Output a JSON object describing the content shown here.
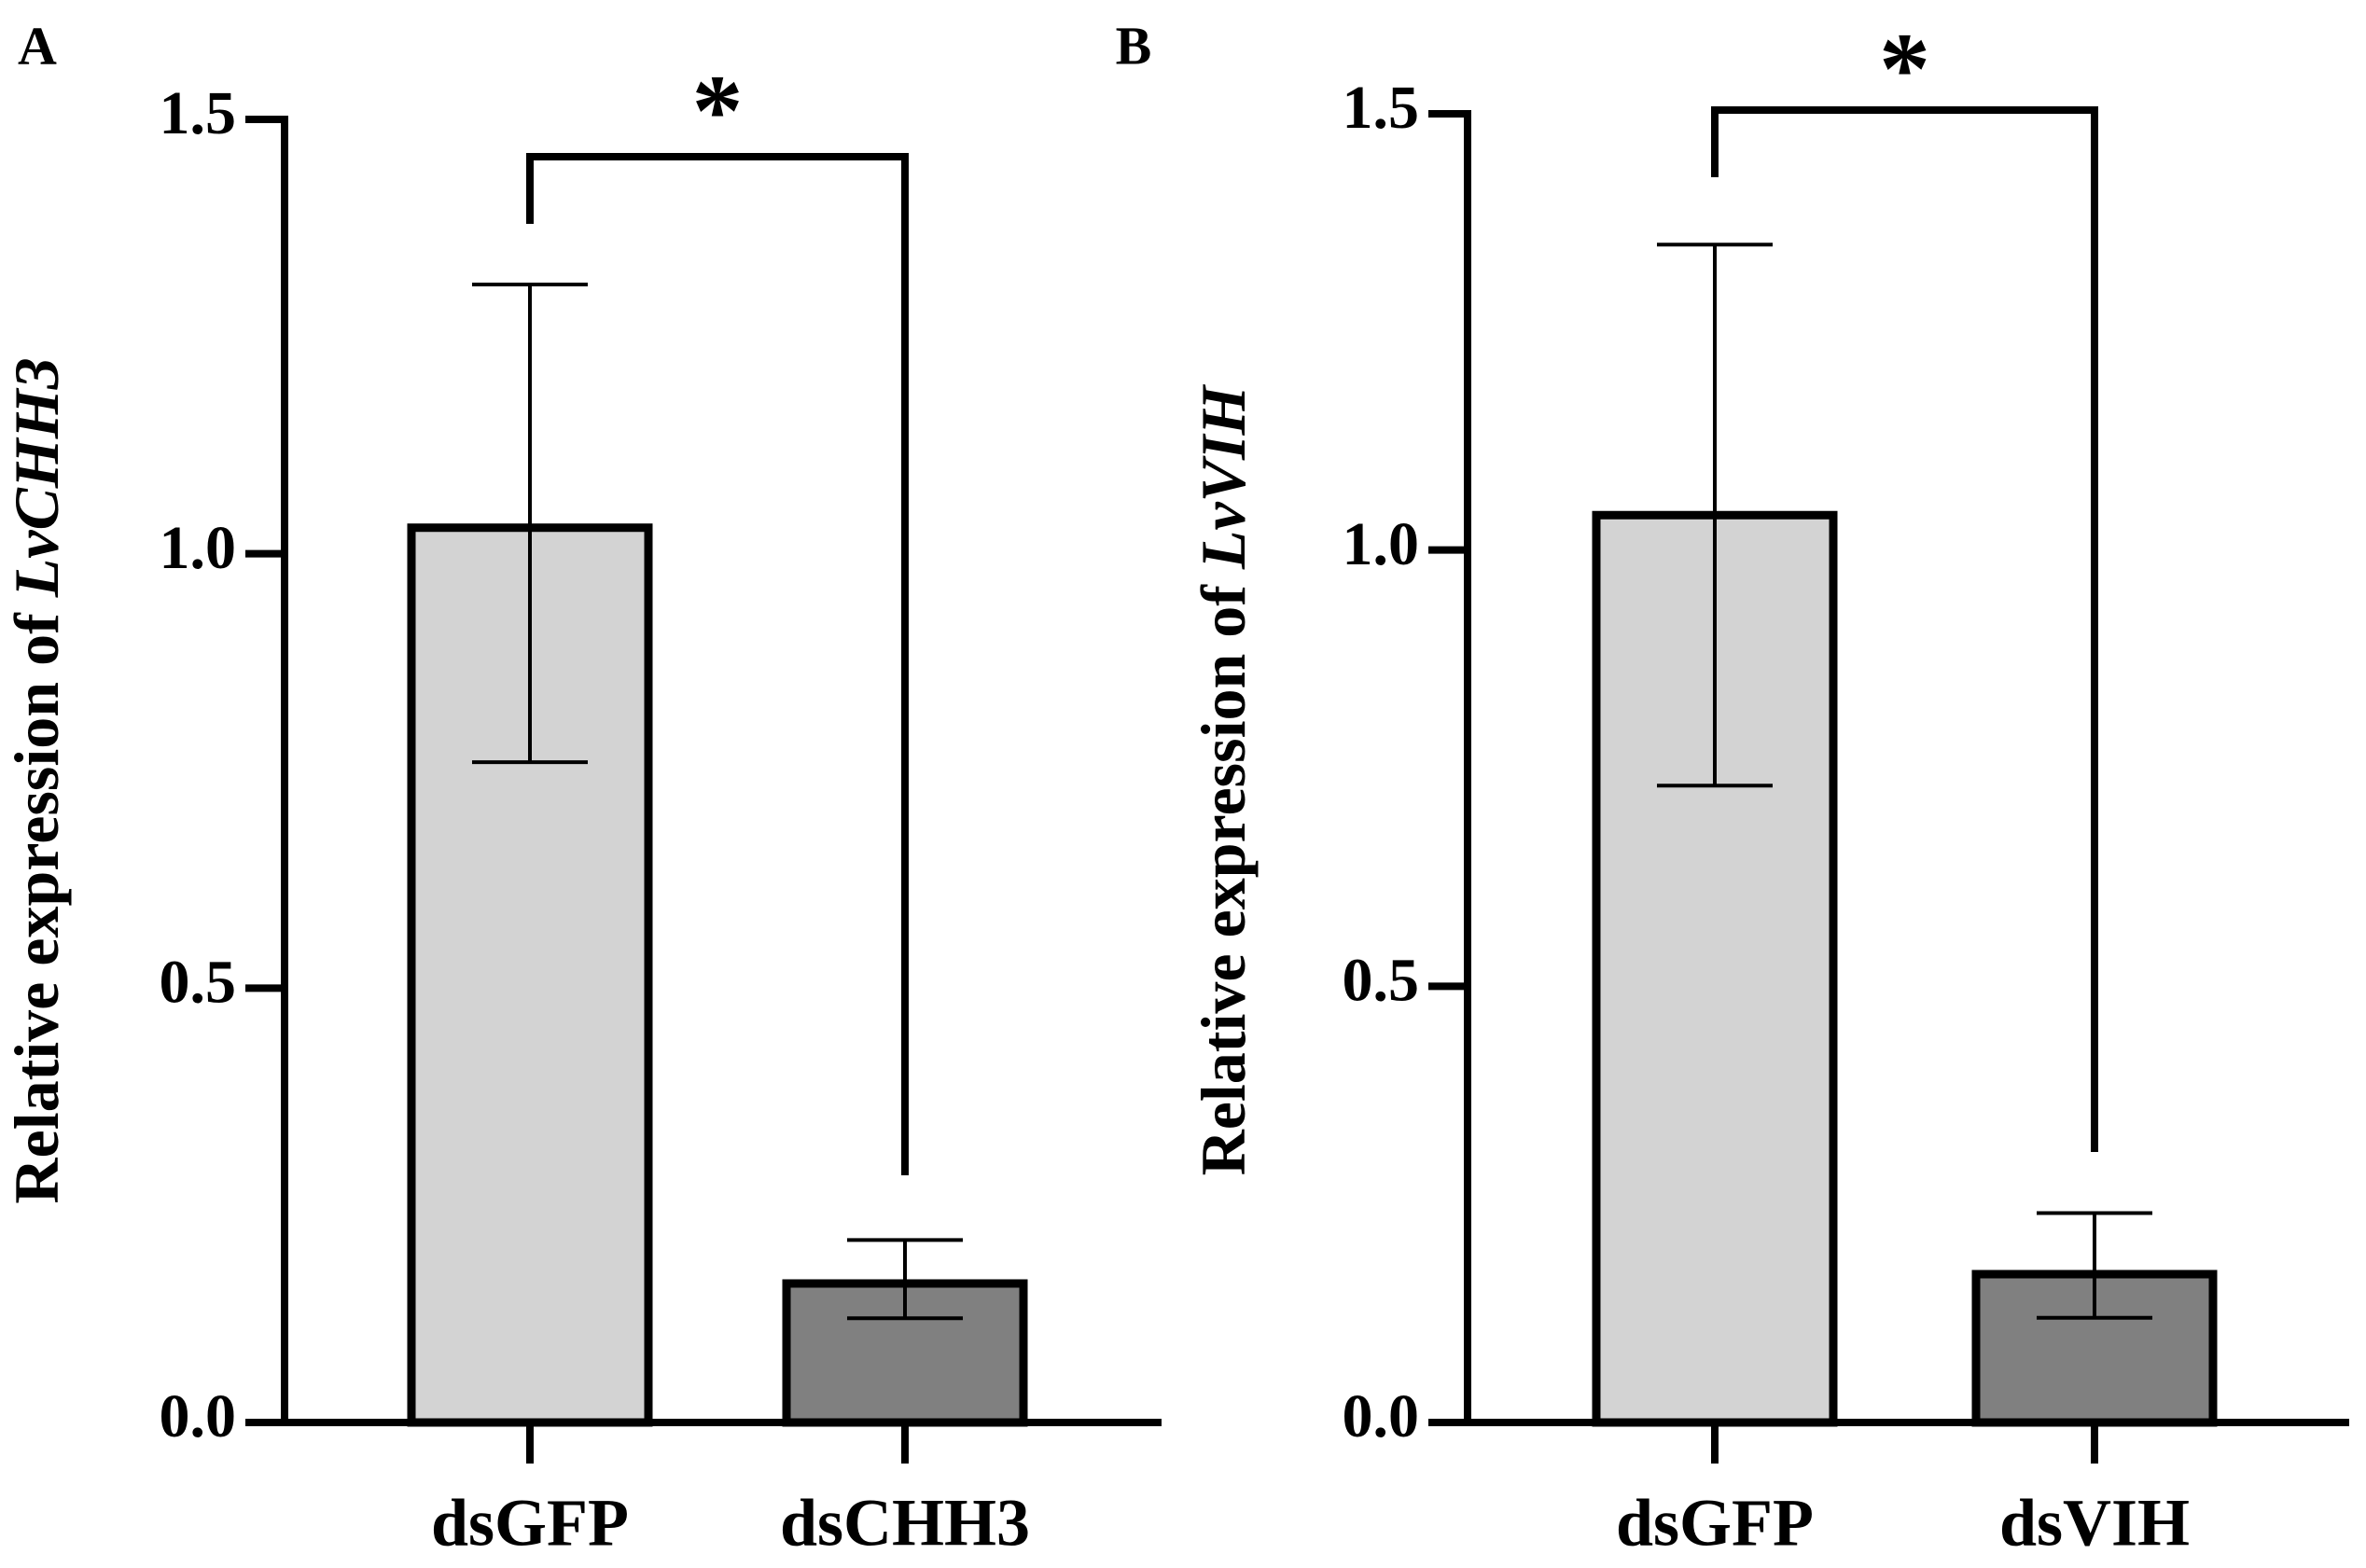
{
  "chart_data": [
    {
      "panel_label": "A",
      "type": "bar",
      "title": "",
      "xlabel": "",
      "ylabel_prefix": "Relative expression of ",
      "ylabel_gene": "LvCHH3",
      "categories": [
        "dsGFP",
        "dsCHH3"
      ],
      "values": [
        1.03,
        0.16
      ],
      "error_low": [
        0.76,
        0.12
      ],
      "error_high": [
        1.31,
        0.21
      ],
      "bar_colors": [
        "#d3d3d3",
        "#808080"
      ],
      "ylim": [
        0,
        1.5
      ],
      "yticks": [
        0.0,
        0.5,
        1.0,
        1.5
      ],
      "ytick_labels": [
        "0.0",
        "0.5",
        "1.0",
        "1.5"
      ],
      "significance": "*"
    },
    {
      "panel_label": "B",
      "type": "bar",
      "title": "",
      "xlabel": "",
      "ylabel_prefix": "Relative expression of ",
      "ylabel_gene": "LvVIH",
      "categories": [
        "dsGFP",
        "dsVIH"
      ],
      "values": [
        1.04,
        0.17
      ],
      "error_low": [
        0.73,
        0.12
      ],
      "error_high": [
        1.35,
        0.24
      ],
      "bar_colors": [
        "#d3d3d3",
        "#808080"
      ],
      "ylim": [
        0,
        1.5
      ],
      "yticks": [
        0.0,
        0.5,
        1.0,
        1.5
      ],
      "ytick_labels": [
        "0.0",
        "0.5",
        "1.0",
        "1.5"
      ],
      "significance": "*"
    }
  ]
}
